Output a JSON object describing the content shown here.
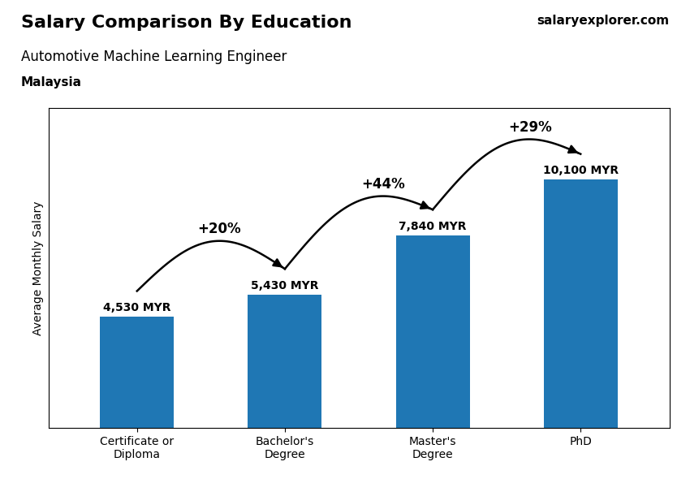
{
  "chart_data": {
    "type": "bar",
    "title": "Salary Comparison By Education",
    "subtitle": "Automotive Machine Learning Engineer",
    "annotations": [
      "Malaysia",
      "salaryexplorer.com"
    ],
    "y_label": "Average Monthly Salary",
    "categories": [
      "Certificate or\nDiploma",
      "Bachelor's\nDegree",
      "Master's\nDegree",
      "PhD"
    ],
    "values": [
      4530,
      5430,
      7840,
      10100
    ],
    "value_labels": [
      "4,530 MYR",
      "5,430 MYR",
      "7,840 MYR",
      "10,100 MYR"
    ],
    "data_labels": true,
    "arrow_labels": [
      "+20%",
      "+44%",
      "+29%"
    ],
    "ylim": [
      0,
      13000
    ],
    "tick_labels": "x",
    "grid": false
  }
}
